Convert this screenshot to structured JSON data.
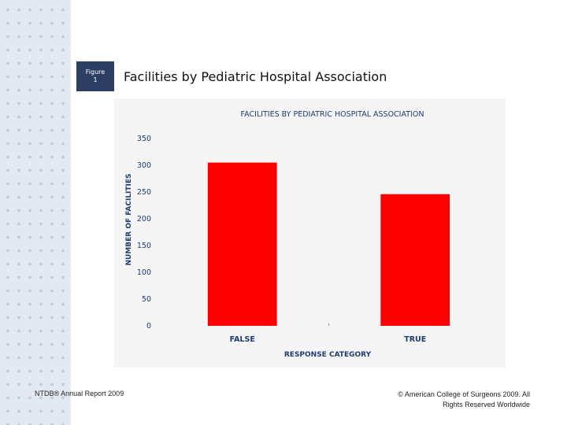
{
  "slide": {
    "badge_line1": "Figure",
    "badge_line2": "1",
    "title": "Facilities by Pediatric Hospital Association",
    "footer_left": "NTDB® Annual Report 2009",
    "footer_right_line1": "© American College of Surgeons 2009.  All",
    "footer_right_line2": "Rights Reserved Worldwide"
  },
  "colors": {
    "bar": "#ff0000",
    "axis_text": "#1f3b73",
    "badge": "#2c3e63"
  },
  "chart_data": {
    "type": "bar",
    "title": "FACILITIES BY PEDIATRIC HOSPITAL ASSOCIATION",
    "xlabel": "RESPONSE CATEGORY",
    "ylabel": "NUMBER OF FACILITIES",
    "categories": [
      "FALSE",
      "TRUE"
    ],
    "values": [
      305,
      246
    ],
    "ylim": [
      0,
      350
    ],
    "yticks": [
      0,
      50,
      100,
      150,
      200,
      250,
      300,
      350
    ],
    "grid": false,
    "legend": "none"
  }
}
